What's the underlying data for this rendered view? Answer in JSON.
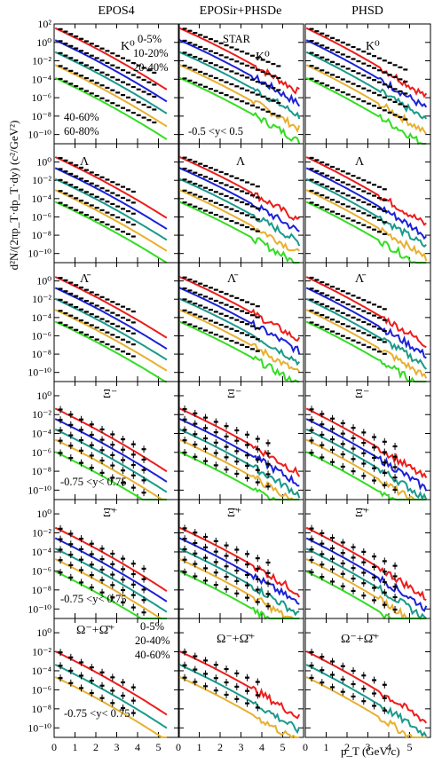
{
  "figure": {
    "column_titles": [
      "EPOS4",
      "EPOSir+PHSDe",
      "PHSD"
    ],
    "ylabel": "d²N/(2πp_T·dp_T·dy) (c²/GeV²)",
    "xlabel": "p_T (GeV/c)",
    "row_labels": [
      "K⁰",
      "Λ",
      "Λ̄",
      "Ξ⁻",
      "Ξ̄⁺",
      "Ω⁻+Ω̄⁺"
    ],
    "experiment_label": "STAR",
    "rapidity_labels": [
      "-0.5 <y< 0.5",
      "-0.75 <y< 0.75",
      "-0.75 <y< 0.75",
      "-0.75 <y< 0.75"
    ],
    "centrality_row1": [
      "0-5%",
      "10-20%",
      "20-40%",
      "40-60%",
      "60-80%"
    ],
    "centrality_row6": [
      "0-5%",
      "20-40%",
      "40-60%"
    ]
  },
  "chart_data": {
    "type": "line",
    "xlabel": "p_T (GeV/c)",
    "ylabel": "d²N/(2πp_T·dp_T·dy) (c²/GeV²)",
    "xlim": [
      0,
      6
    ],
    "x_ticks": [
      "0",
      "1",
      "2",
      "3",
      "4",
      "5"
    ],
    "y_scale": "log",
    "y_ticks": [
      "10²",
      "10⁰",
      "10⁻²",
      "10⁻⁴",
      "10⁻⁶",
      "10⁻⁸",
      "10⁻¹⁰"
    ],
    "colors": {
      "0-5%": "#ee1c1c",
      "10-20%": "#1c22d6",
      "20-40%": "#1a9a8a",
      "40-60%": "#e8b030",
      "60-80%": "#33dd22",
      "data": "#000000"
    },
    "rows": [
      {
        "particle": "K⁰",
        "ylim_exp": [
          -11,
          2
        ],
        "ticks": [
          "10²",
          "10⁰",
          "10⁻²",
          "10⁻⁴",
          "10⁻⁶",
          "10⁻⁸",
          "10⁻¹⁰"
        ],
        "series": [
          {
            "centrality": "0-5%",
            "start_exp": 1.6,
            "x_end": 5.0
          },
          {
            "centrality": "10-20%",
            "start_exp": 0.3,
            "x_end": 5.0
          },
          {
            "centrality": "20-40%",
            "start_exp": -1.0,
            "x_end": 5.0
          },
          {
            "centrality": "40-60%",
            "start_exp": -2.4,
            "x_end": 5.0
          },
          {
            "centrality": "60-80%",
            "start_exp": -3.8,
            "x_end": 5.0
          }
        ]
      },
      {
        "particle": "Λ",
        "ylim_exp": [
          -11,
          2
        ],
        "ticks": [
          "10⁰",
          "10⁻²",
          "10⁻⁴",
          "10⁻⁶",
          "10⁻⁸",
          "10⁻¹⁰"
        ],
        "series": [
          {
            "centrality": "0-5%",
            "start_exp": 0.6,
            "x_end": 4.0
          },
          {
            "centrality": "10-20%",
            "start_exp": -0.6,
            "x_end": 4.0
          },
          {
            "centrality": "20-40%",
            "start_exp": -1.8,
            "x_end": 4.0
          },
          {
            "centrality": "40-60%",
            "start_exp": -3.0,
            "x_end": 4.0
          },
          {
            "centrality": "60-80%",
            "start_exp": -4.3,
            "x_end": 4.0
          }
        ]
      },
      {
        "particle": "Λ̄",
        "ylim_exp": [
          -11,
          2
        ],
        "ticks": [
          "10⁰",
          "10⁻²",
          "10⁻⁴",
          "10⁻⁶",
          "10⁻⁸",
          "10⁻¹⁰"
        ],
        "series": [
          {
            "centrality": "0-5%",
            "start_exp": 0.5,
            "x_end": 4.0
          },
          {
            "centrality": "10-20%",
            "start_exp": -0.7,
            "x_end": 4.0
          },
          {
            "centrality": "20-40%",
            "start_exp": -1.9,
            "x_end": 4.0
          },
          {
            "centrality": "40-60%",
            "start_exp": -3.1,
            "x_end": 4.0
          },
          {
            "centrality": "60-80%",
            "start_exp": -4.4,
            "x_end": 4.0
          }
        ]
      },
      {
        "particle": "Ξ⁻",
        "ylim_exp": [
          -11,
          1.5
        ],
        "ticks": [
          "10⁰",
          "10⁻²",
          "10⁻⁴",
          "10⁻⁶",
          "10⁻⁸",
          "10⁻¹⁰"
        ],
        "series": [
          {
            "centrality": "0-5%",
            "start_exp": -1.3,
            "x_end": 4.5
          },
          {
            "centrality": "10-20%",
            "start_exp": -2.4,
            "x_end": 4.5
          },
          {
            "centrality": "20-40%",
            "start_exp": -3.5,
            "x_end": 4.5
          },
          {
            "centrality": "40-60%",
            "start_exp": -4.6,
            "x_end": 4.5
          },
          {
            "centrality": "60-80%",
            "start_exp": -5.9,
            "x_end": 4.5
          }
        ]
      },
      {
        "particle": "Ξ̄⁺",
        "ylim_exp": [
          -11,
          1.5
        ],
        "ticks": [
          "10⁰",
          "10⁻²",
          "10⁻⁴",
          "10⁻⁶",
          "10⁻⁸",
          "10⁻¹⁰"
        ],
        "series": [
          {
            "centrality": "0-5%",
            "start_exp": -1.4,
            "x_end": 4.5
          },
          {
            "centrality": "10-20%",
            "start_exp": -2.5,
            "x_end": 4.5
          },
          {
            "centrality": "20-40%",
            "start_exp": -3.6,
            "x_end": 4.5
          },
          {
            "centrality": "40-60%",
            "start_exp": -4.7,
            "x_end": 4.5
          },
          {
            "centrality": "60-80%",
            "start_exp": -6.0,
            "x_end": 4.5
          }
        ]
      },
      {
        "particle": "Ω⁻+Ω̄⁺",
        "ylim_exp": [
          -11,
          1.5
        ],
        "ticks": [
          "10⁰",
          "10⁻²",
          "10⁻⁴",
          "10⁻⁶",
          "10⁻⁸",
          "10⁻¹⁰"
        ],
        "series": [
          {
            "centrality": "0-5%",
            "start_exp": -1.9,
            "x_end": 4.0
          },
          {
            "centrality": "20-40%",
            "start_exp": -3.3,
            "x_end": 4.0
          },
          {
            "centrality": "40-60%",
            "start_exp": -4.6,
            "x_end": 4.0
          }
        ]
      }
    ]
  }
}
